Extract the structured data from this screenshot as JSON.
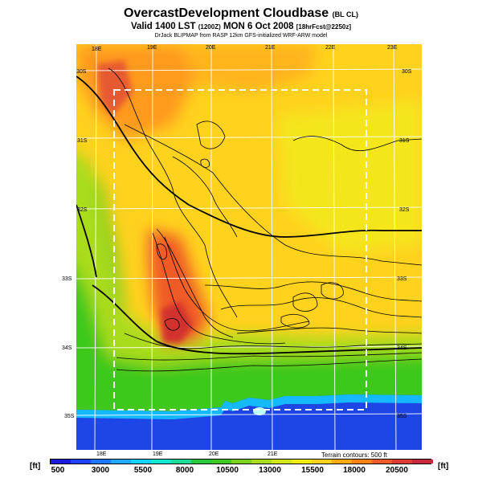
{
  "header": {
    "title": "OvercastDevelopment Cloudbase",
    "title_suffix": "(BL CL)",
    "subtitle_a": "Valid 1400 LST",
    "subtitle_b": "(1200Z)",
    "subtitle_c": "MON 6 Oct 2008",
    "subtitle_d": "[18hrFcst@2250z]",
    "credit": "DrJack BLIPMAP from RASP 12km GFS-initialized WRF-ARW model"
  },
  "map": {
    "top_lon_labels": [
      "18E",
      "19E",
      "20E",
      "21E",
      "22E",
      "23E"
    ],
    "bottom_lon_labels": [
      "18E",
      "19E",
      "20E",
      "21E"
    ],
    "left_lat_labels": [
      "30S",
      "31S",
      "32S",
      "33S",
      "34S",
      "35S"
    ],
    "right_lat_labels": [
      "30S",
      "31S",
      "32S",
      "33S",
      "34S",
      "35S"
    ],
    "terrain_note": "Terrain contours: 500 ft"
  },
  "colorbar": {
    "unit_left": "[ft]",
    "unit_right": "[ft]",
    "tick_labels": [
      "500",
      "3000",
      "5500",
      "8000",
      "10500",
      "13000",
      "15500",
      "18000",
      "20500"
    ],
    "colors": [
      "#1a1adb",
      "#1e40ff",
      "#1e78ff",
      "#1eaaff",
      "#14d2ff",
      "#14e6d2",
      "#1edc96",
      "#28c83c",
      "#3cc81e",
      "#78d21e",
      "#aadc1e",
      "#d2e61e",
      "#f0eb14",
      "#ffd21e",
      "#ffaa14",
      "#ff8214",
      "#f05a28",
      "#dc3c32",
      "#c8283c"
    ]
  },
  "legend_colors": {
    "ocean": "#1e46e6",
    "coast": "#14b9ff",
    "lowland": "#3cc81e",
    "plateau": "#ffd21e",
    "high": "#f05a28",
    "peak": "#d2322d"
  }
}
